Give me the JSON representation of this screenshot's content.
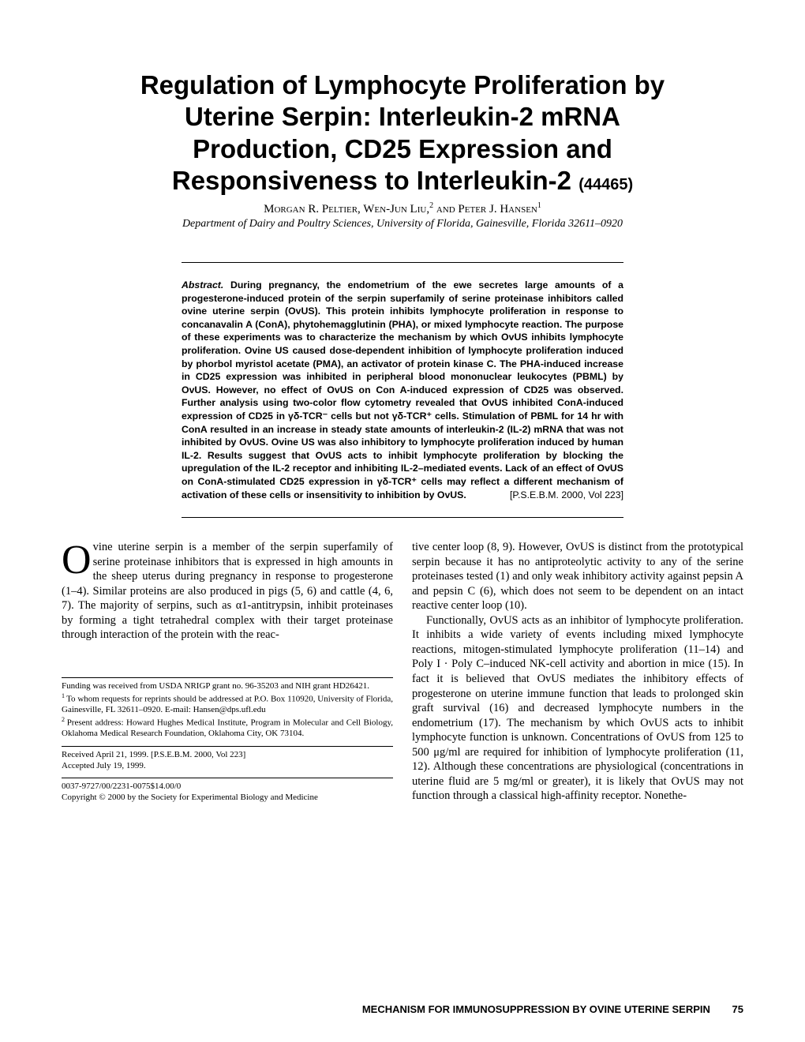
{
  "title_line1": "Regulation of Lymphocyte Proliferation by",
  "title_line2": "Uterine Serpin: Interleukin-2 mRNA",
  "title_line3": "Production, CD25 Expression and",
  "title_line4": "Responsiveness to Interleukin-2",
  "manuscript_no": "(44465)",
  "authors_html": "Morgan R. Peltier, Wen-Jun Liu,",
  "author_sup2": "2",
  "authors_and": " and Peter J. Hansen",
  "author_sup1": "1",
  "affiliation": "Department of Dairy and Poultry Sciences, University of Florida, Gainesville, Florida 32611–0920",
  "abstract_label": "Abstract.",
  "abstract_body": "During pregnancy, the endometrium of the ewe secretes large amounts of a progesterone-induced protein of the serpin superfamily of serine proteinase inhibitors called ovine uterine serpin (OvUS). This protein inhibits lymphocyte proliferation in response to concanavalin A (ConA), phytohemagglutinin (PHA), or mixed lymphocyte reaction. The purpose of these experiments was to characterize the mechanism by which OvUS inhibits lymphocyte proliferation. Ovine US caused dose-dependent inhibition of lymphocyte proliferation induced by phorbol myristol acetate (PMA), an activator of protein kinase C. The PHA-induced increase in CD25 expression was inhibited in peripheral blood mononuclear leukocytes (PBML) by OvUS. However, no effect of OvUS on Con A-induced expression of CD25 was observed. Further analysis using two-color flow cytometry revealed that OvUS inhibited ConA-induced expression of CD25 in γδ-TCR⁻ cells but not γδ-TCR⁺ cells. Stimulation of PBML for 14 hr with ConA resulted in an increase in steady state amounts of interleukin-2 (IL-2) mRNA that was not inhibited by OvUS. Ovine US was also inhibitory to lymphocyte proliferation induced by human IL-2. Results suggest that OvUS acts to inhibit lymphocyte proliferation by blocking the upregulation of the IL-2 receptor and inhibiting IL-2–mediated events. Lack of an effect of OvUS on ConA-stimulated CD25 expression in γδ-TCR⁺ cells may reflect a different mechanism of activation of these cells or insensitivity to inhibition by OvUS.",
  "abstract_citation": "[P.S.E.B.M. 2000, Vol 223]",
  "col1_p1": "vine uterine serpin is a member of the serpin superfamily of serine proteinase inhibitors that is expressed in high amounts in the sheep uterus during pregnancy in response to progesterone (1–4). Similar proteins are also produced in pigs (5, 6) and cattle (4, 6, 7). The majority of serpins, such as α1-antitrypsin, inhibit proteinases by forming a tight tetrahedral complex with their target proteinase through interaction of the protein with the reac-",
  "col2_p1": "tive center loop (8, 9). However, OvUS is distinct from the prototypical serpin because it has no antiproteolytic activity to any of the serine proteinases tested (1) and only weak inhibitory activity against pepsin A and pepsin C (6), which does not seem to be dependent on an intact reactive center loop (10).",
  "col2_p2": "Functionally, OvUS acts as an inhibitor of lymphocyte proliferation. It inhibits a wide variety of events including mixed lymphocyte reactions, mitogen-stimulated lymphocyte proliferation (11–14) and Poly I · Poly C–induced NK-cell activity and abortion in mice (15). In fact it is believed that OvUS mediates the inhibitory effects of progesterone on uterine immune function that leads to prolonged skin graft survival (16) and decreased lymphocyte numbers in the endometrium (17). The mechanism by which OvUS acts to inhibit lymphocyte function is unknown. Concentrations of OvUS from 125 to 500 μg/ml are required for inhibition of lymphocyte proliferation (11, 12). Although these concentrations are physiological (concentrations in uterine fluid are 5 mg/ml or greater), it is likely that OvUS may not function through a classical high-affinity receptor. Nonethe-",
  "fn_funding": "Funding was received from USDA NRIGP grant no. 96-35203 and NIH grant HD26421.",
  "fn1": "To whom requests for reprints should be addressed at P.O. Box 110920, University of Florida, Gainesville, FL 32611–0920. E-mail: Hansen@dps.ufl.edu",
  "fn2": "Present address: Howard Hughes Medical Institute, Program in Molecular and Cell Biology, Oklahoma Medical Research Foundation, Oklahoma City, OK 73104.",
  "fn_dates": "Received April 21, 1999. [P.S.E.B.M. 2000, Vol 223]\nAccepted July 19, 1999.",
  "fn_copyright1": "0037-9727/00/2231-0075$14.00/0",
  "fn_copyright2": "Copyright © 2000 by the Society for Experimental Biology and Medicine",
  "running_title": "MECHANISM FOR IMMUNOSUPPRESSION BY OVINE UTERINE SERPIN",
  "page_no": "75"
}
